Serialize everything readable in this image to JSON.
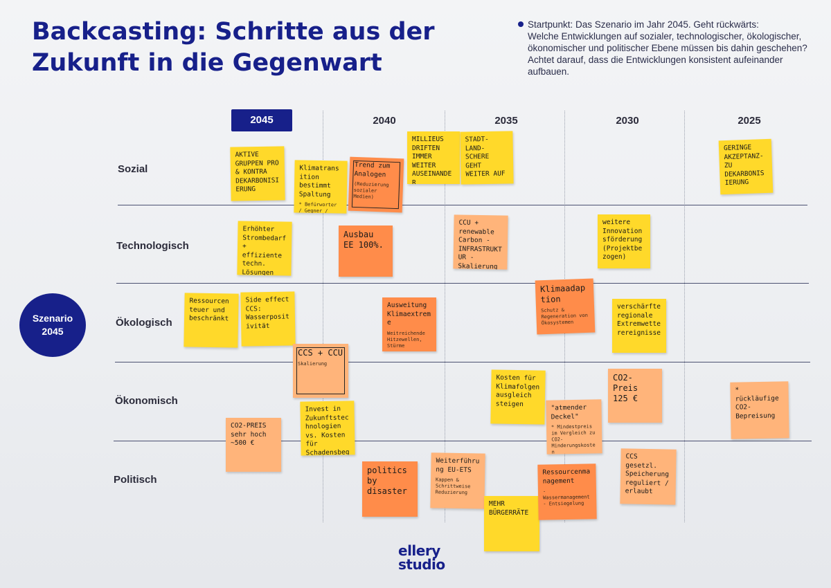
{
  "header": {
    "title": "Backcasting: Schritte aus der Zukunft in die Gegenwart",
    "instruction_line1": "Startpunkt: Das Szenario im Jahr 2045. Geht rückwärts:",
    "instruction_line2": "Welche Entwicklungen auf sozialer, technologischer, ökologischer, ökonomischer und politischer Ebene müssen bis dahin geschehen? Achtet darauf, dass die Entwicklungen konsistent aufeinander aufbauen."
  },
  "timeline": [
    "2045",
    "2040",
    "2035",
    "2030",
    "2025"
  ],
  "rows": [
    "Sozial",
    "Technologisch",
    "Ökologisch",
    "Ökonomisch",
    "Politisch"
  ],
  "scenario": {
    "line1": "Szenario",
    "line2": "2045"
  },
  "colors": {
    "accent": "#17208a",
    "yellow_note": "#ffd92a",
    "orange_note": "#ff8c4a",
    "peach_note": "#ffb47a"
  },
  "notes": [
    {
      "text": "AKTIVE GRUPPEN PRO & KONTRA DEKARBONISIERUNG",
      "sub": "",
      "color": "yellow"
    },
    {
      "text": "Klimatransition bestimmt Spaltung",
      "sub": "* Befürworter / Gegner / Betroffene",
      "color": "yellow"
    },
    {
      "text": "Trend zum Analogen",
      "sub": "(Reduzierung sozialer Medien)",
      "color": "orange"
    },
    {
      "text": "MILLIEUS DRIFTEN IMMER WEITER AUSEINANDER",
      "sub": "",
      "color": "yellow"
    },
    {
      "text": "STADT-LAND-SCHERE GEHT WEITER AUF",
      "sub": "",
      "color": "yellow"
    },
    {
      "text": "GERINGE AKZEPTANZ-ZU DEKARBONISIERUNG",
      "sub": "",
      "color": "yellow"
    },
    {
      "text": "Erhöhter Strombedarf + effiziente techn. Lösungen",
      "sub": "",
      "color": "yellow"
    },
    {
      "text": "Ausbau EE 100%.",
      "sub": "",
      "color": "orange"
    },
    {
      "text": "CCU + renewable Carbon - INFRASTRUKTUR - Skalierung",
      "sub": "",
      "color": "peach"
    },
    {
      "text": "weitere Innovationsförderung (Projektbezogen)",
      "sub": "",
      "color": "yellow"
    },
    {
      "text": "Ressourcen teuer und beschränkt",
      "sub": "",
      "color": "yellow"
    },
    {
      "text": "Side effect CCS: Wasserpositivität",
      "sub": "",
      "color": "yellow"
    },
    {
      "text": "Ausweitung Klimaextreme",
      "sub": "Weitreichende Hitzewellen, Stürme",
      "color": "orange"
    },
    {
      "text": "Klimaadaption",
      "sub": "Schutz & Regeneration von Ökosystemen",
      "color": "orange"
    },
    {
      "text": "verschärfte regionale Extremwetterereignisse",
      "sub": "",
      "color": "yellow"
    },
    {
      "text": "CCS + CCU",
      "sub": "Skalierung",
      "color": "peach"
    },
    {
      "text": "Kosten für Klimafolgenausgleich steigen",
      "sub": "",
      "color": "yellow"
    },
    {
      "text": "CO2-Preis 125 €",
      "sub": "",
      "color": "peach"
    },
    {
      "text": "* rückläufige CO2-Bepreisung",
      "sub": "",
      "color": "peach"
    },
    {
      "text": "Invest in Zukunftstechnologien vs. Kosten für Schadensbegrenzung",
      "sub": "",
      "color": "yellow"
    },
    {
      "text": "\"atmender Deckel\"",
      "sub": "* Mindestpreis im Vergleich zu CO2-Minderungskosten",
      "color": "peach"
    },
    {
      "text": "CO2-PREIS sehr hoch ~500 €",
      "sub": "",
      "color": "peach"
    },
    {
      "text": "politics by disaster",
      "sub": "",
      "color": "orange"
    },
    {
      "text": "Weiterführung EU-ETS",
      "sub": "Kappen & Schrittweise Reduzierung",
      "color": "peach"
    },
    {
      "text": "MEHR BÜRGERRÄTE",
      "sub": "",
      "color": "yellow"
    },
    {
      "text": "Ressourcenmanagement",
      "sub": "- Wassermanagement - Entsiegelung",
      "color": "orange"
    },
    {
      "text": "CCS gesetzl. Speicherung reguliert / erlaubt",
      "sub": "",
      "color": "peach"
    }
  ],
  "logo": {
    "line1": "ellery",
    "line2": "studio"
  }
}
